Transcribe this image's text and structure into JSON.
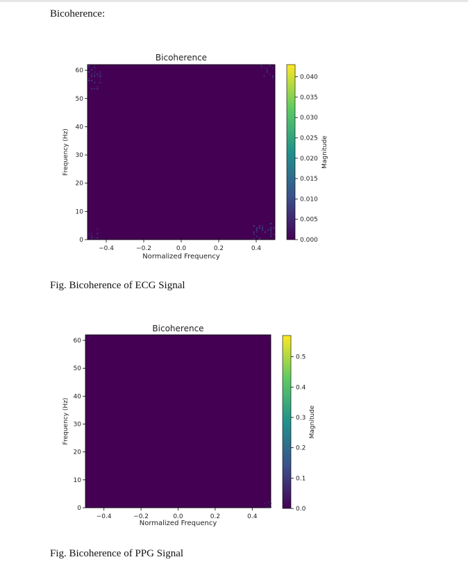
{
  "page": {
    "section_title": "Bicoherence:",
    "captions": [
      "Fig. Bicoherence of ECG Signal",
      "Fig. Bicoherence of PPG Signal"
    ]
  },
  "chart_data": [
    {
      "type": "heatmap",
      "title": "Bicoherence",
      "xlabel": "Normalized Frequency",
      "ylabel": "Frequency (Hz)",
      "colorbar_label": "Magnitude",
      "xlim": [
        -0.5,
        0.5
      ],
      "ylim": [
        0,
        62
      ],
      "x_ticks": [
        -0.4,
        -0.2,
        0.0,
        0.2,
        0.4
      ],
      "x_tick_labels": [
        "−0.4",
        "−0.2",
        "0.0",
        "0.2",
        "0.4"
      ],
      "y_ticks": [
        0,
        10,
        20,
        30,
        40,
        50,
        60
      ],
      "y_tick_labels": [
        "0",
        "10",
        "20",
        "30",
        "40",
        "50",
        "60"
      ],
      "colorbar_range": [
        0,
        0.043
      ],
      "colorbar_ticks": [
        0.0,
        0.005,
        0.01,
        0.015,
        0.02,
        0.025,
        0.03,
        0.035,
        0.04
      ],
      "colorbar_tick_labels": [
        "0.000",
        "0.005",
        "0.010",
        "0.015",
        "0.020",
        "0.025",
        "0.030",
        "0.035",
        "0.040"
      ],
      "colormap": [
        "#440154",
        "#3b528b",
        "#21918c",
        "#5ec962",
        "#fde725"
      ],
      "background_value": 0.0,
      "nonzero_regions": [
        {
          "corner": "top-left",
          "x_range": [
            -0.5,
            -0.42
          ],
          "y_range": [
            53,
            62
          ],
          "peak": 0.012
        },
        {
          "corner": "bottom-left",
          "x_range": [
            -0.5,
            -0.42
          ],
          "y_range": [
            0,
            4
          ],
          "peak": 0.01
        },
        {
          "corner": "top-right",
          "x_range": [
            0.42,
            0.5
          ],
          "y_range": [
            57,
            62
          ],
          "peak": 0.01
        },
        {
          "corner": "bottom-right",
          "x_range": [
            0.38,
            0.5
          ],
          "y_range": [
            0,
            6
          ],
          "peak": 0.014
        }
      ]
    },
    {
      "type": "heatmap",
      "title": "Bicoherence",
      "xlabel": "Normalized Frequency",
      "ylabel": "Frequency (Hz)",
      "colorbar_label": "Magnitude",
      "xlim": [
        -0.5,
        0.5
      ],
      "ylim": [
        0,
        62
      ],
      "x_ticks": [
        -0.4,
        -0.2,
        0.0,
        0.2,
        0.4
      ],
      "x_tick_labels": [
        "−0.4",
        "−0.2",
        "0.0",
        "0.2",
        "0.4"
      ],
      "y_ticks": [
        0,
        10,
        20,
        30,
        40,
        50,
        60
      ],
      "y_tick_labels": [
        "0",
        "10",
        "20",
        "30",
        "40",
        "50",
        "60"
      ],
      "colorbar_range": [
        0,
        0.57
      ],
      "colorbar_ticks": [
        0.0,
        0.1,
        0.2,
        0.3,
        0.4,
        0.5
      ],
      "colorbar_tick_labels": [
        "0.0",
        "0.1",
        "0.2",
        "0.3",
        "0.4",
        "0.5"
      ],
      "colormap": [
        "#440154",
        "#3b528b",
        "#21918c",
        "#5ec962",
        "#fde725"
      ],
      "background_value": 0.0,
      "nonzero_regions": [
        {
          "corner": "top-left",
          "x_range": [
            -0.5,
            -0.47
          ],
          "y_range": [
            60,
            62
          ],
          "peak": 0.08
        },
        {
          "corner": "bottom-left",
          "x_range": [
            -0.5,
            -0.48
          ],
          "y_range": [
            0,
            1.5
          ],
          "peak": 0.08
        },
        {
          "corner": "top-right",
          "x_range": [
            0.48,
            0.5
          ],
          "y_range": [
            60,
            62
          ],
          "peak": 0.06
        },
        {
          "corner": "bottom-right",
          "x_range": [
            0.46,
            0.5
          ],
          "y_range": [
            0,
            3
          ],
          "peak": 0.08
        }
      ]
    }
  ]
}
